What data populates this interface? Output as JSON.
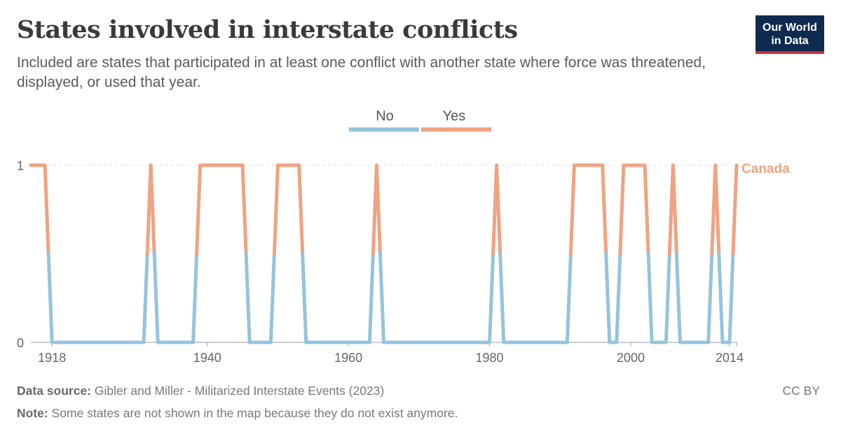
{
  "header": {
    "title": "States involved in interstate conflicts",
    "subtitle": "Included are states that participated in at least one conflict with another state where force was threatened, displayed, or used that year.",
    "logo_line1": "Our World",
    "logo_line2": "in Data"
  },
  "footer": {
    "source_label": "Data source:",
    "source_text": "Gibler and Miller - Militarized Interstate Events (2023)",
    "note_label": "Note:",
    "note_text": "Some states are not shown in the map because they do not exist anymore.",
    "license": "CC BY"
  },
  "colors": {
    "no": "#95c4dc",
    "yes": "#efa382",
    "axis": "#666666",
    "grid": "#dddddd"
  },
  "chart_data": {
    "type": "line",
    "title": "States involved in interstate conflicts",
    "legend": [
      {
        "label": "No",
        "color": "#95c4dc"
      },
      {
        "label": "Yes",
        "color": "#efa382"
      }
    ],
    "legend_position": "top-center",
    "series": [
      {
        "name": "Canada",
        "x": [
          1915,
          1916,
          1917,
          1918,
          1919,
          1920,
          1921,
          1922,
          1923,
          1924,
          1925,
          1926,
          1927,
          1928,
          1929,
          1930,
          1931,
          1932,
          1933,
          1934,
          1935,
          1936,
          1937,
          1938,
          1939,
          1940,
          1941,
          1942,
          1943,
          1944,
          1945,
          1946,
          1947,
          1948,
          1949,
          1950,
          1951,
          1952,
          1953,
          1954,
          1955,
          1956,
          1957,
          1958,
          1959,
          1960,
          1961,
          1962,
          1963,
          1964,
          1965,
          1966,
          1967,
          1968,
          1969,
          1970,
          1971,
          1972,
          1973,
          1974,
          1975,
          1976,
          1977,
          1978,
          1979,
          1980,
          1981,
          1982,
          1983,
          1984,
          1985,
          1986,
          1987,
          1988,
          1989,
          1990,
          1991,
          1992,
          1993,
          1994,
          1995,
          1996,
          1997,
          1998,
          1999,
          2000,
          2001,
          2002,
          2003,
          2004,
          2005,
          2006,
          2007,
          2008,
          2009,
          2010,
          2011,
          2012,
          2013,
          2014,
          2015
        ],
        "values": [
          1,
          1,
          1,
          0,
          0,
          0,
          0,
          0,
          0,
          0,
          0,
          0,
          0,
          0,
          0,
          0,
          0,
          1,
          0,
          0,
          0,
          0,
          0,
          0,
          1,
          1,
          1,
          1,
          1,
          1,
          1,
          0,
          0,
          0,
          0,
          1,
          1,
          1,
          1,
          0,
          0,
          0,
          0,
          0,
          0,
          0,
          0,
          0,
          0,
          1,
          0,
          0,
          0,
          0,
          0,
          0,
          0,
          0,
          0,
          0,
          0,
          0,
          0,
          0,
          0,
          0,
          1,
          0,
          0,
          0,
          0,
          0,
          0,
          0,
          0,
          0,
          0,
          1,
          1,
          1,
          1,
          1,
          0,
          0,
          1,
          1,
          1,
          1,
          0,
          0,
          0,
          1,
          0,
          0,
          0,
          0,
          0,
          1,
          0,
          0,
          1
        ]
      }
    ],
    "xlim": [
      1915,
      2015
    ],
    "ylim": [
      0,
      1
    ],
    "x_ticks": [
      "1918",
      "1940",
      "1960",
      "1980",
      "2000",
      "2014"
    ],
    "y_ticks": [
      "0",
      "1"
    ],
    "series_label": "Canada",
    "grid": true
  }
}
